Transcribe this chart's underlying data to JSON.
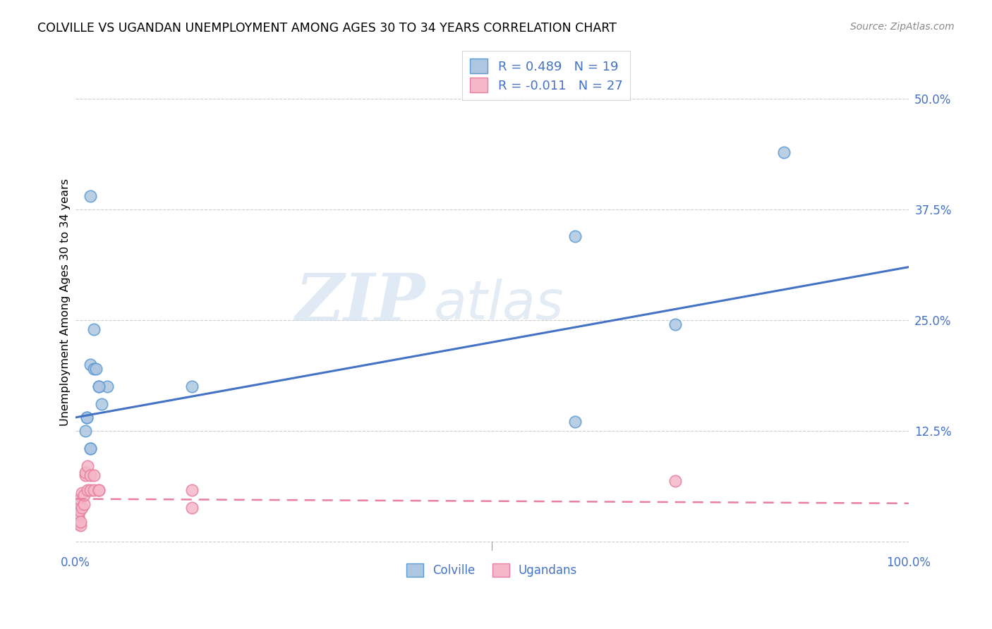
{
  "title": "COLVILLE VS UGANDAN UNEMPLOYMENT AMONG AGES 30 TO 34 YEARS CORRELATION CHART",
  "source": "Source: ZipAtlas.com",
  "ylabel": "Unemployment Among Ages 30 to 34 years",
  "xlim": [
    0.0,
    1.0
  ],
  "ylim": [
    -0.01,
    0.55
  ],
  "xticks": [
    0.0,
    0.1,
    0.2,
    0.3,
    0.4,
    0.5,
    0.6,
    0.7,
    0.8,
    0.9,
    1.0
  ],
  "xtick_labels": [
    "0.0%",
    "",
    "",
    "",
    "",
    "",
    "",
    "",
    "",
    "",
    "100.0%"
  ],
  "yticks": [
    0.0,
    0.125,
    0.25,
    0.375,
    0.5
  ],
  "ytick_labels_right": [
    "",
    "12.5%",
    "25.0%",
    "37.5%",
    "50.0%"
  ],
  "colville_color": "#aec6e0",
  "colville_edge": "#5b9bd5",
  "ugandan_color": "#f4b8c8",
  "ugandan_edge": "#e87fa0",
  "line_blue": "#4472c4",
  "line_pink": "#e87fa0",
  "legend_r1": "R = 0.489   N = 19",
  "legend_r2": "R = -0.011   N = 27",
  "watermark_zip": "ZIP",
  "watermark_atlas": "atlas",
  "colville_x": [
    0.018,
    0.018,
    0.022,
    0.025,
    0.028,
    0.032,
    0.038,
    0.018,
    0.018,
    0.014,
    0.014,
    0.012,
    0.6,
    0.6,
    0.72,
    0.85,
    0.14,
    0.022,
    0.028
  ],
  "colville_y": [
    0.39,
    0.2,
    0.195,
    0.195,
    0.175,
    0.155,
    0.175,
    0.105,
    0.105,
    0.14,
    0.14,
    0.125,
    0.345,
    0.135,
    0.245,
    0.44,
    0.175,
    0.24,
    0.175
  ],
  "ugandan_x": [
    0.004,
    0.004,
    0.004,
    0.004,
    0.004,
    0.005,
    0.005,
    0.005,
    0.006,
    0.006,
    0.008,
    0.008,
    0.01,
    0.01,
    0.012,
    0.012,
    0.015,
    0.015,
    0.018,
    0.018,
    0.022,
    0.022,
    0.028,
    0.028,
    0.14,
    0.14,
    0.72
  ],
  "ugandan_y": [
    0.02,
    0.025,
    0.028,
    0.032,
    0.038,
    0.035,
    0.042,
    0.048,
    0.018,
    0.022,
    0.038,
    0.055,
    0.042,
    0.052,
    0.075,
    0.078,
    0.085,
    0.058,
    0.075,
    0.058,
    0.075,
    0.058,
    0.058,
    0.058,
    0.058,
    0.038,
    0.068
  ],
  "blue_line_x0": 0.0,
  "blue_line_x1": 1.0,
  "blue_line_y0": 0.14,
  "blue_line_y1": 0.31,
  "pink_line_x0": 0.0,
  "pink_line_x1": 1.0,
  "pink_line_y0": 0.048,
  "pink_line_y1": 0.043
}
